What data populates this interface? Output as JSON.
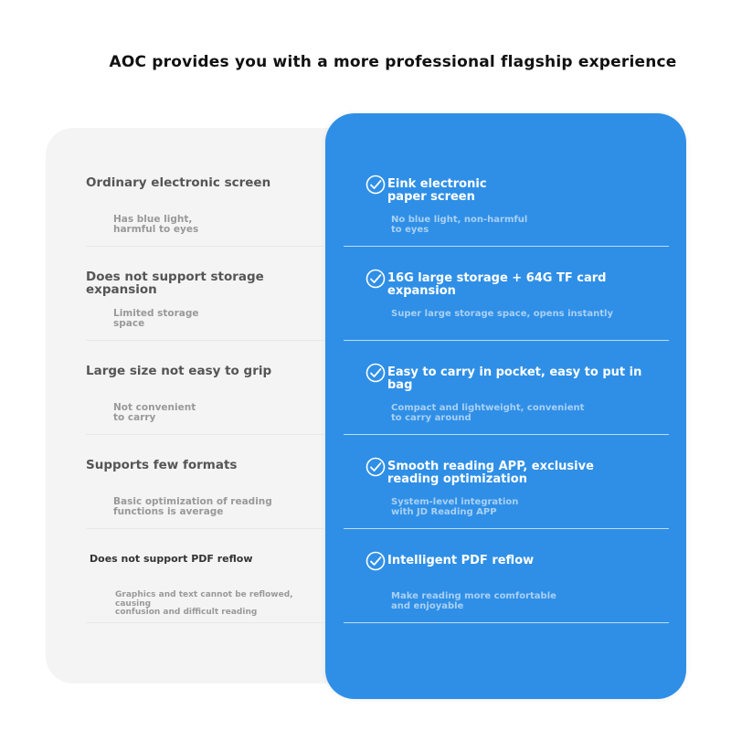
{
  "title": "AOC provides you with a more professional flagship experience",
  "colors": {
    "accent_blue": "#2f8fe6",
    "left_card": "#f4f4f4"
  },
  "ordinary": [
    {
      "title": "Ordinary electronic screen",
      "subtitle": "Has blue light,\n harmful to eyes"
    },
    {
      "title": "Does not support storage\n expansion",
      "subtitle": "Limited storage\n space"
    },
    {
      "title": "Large size not easy to grip",
      "subtitle": "Not convenient\n to carry"
    },
    {
      "title": "Supports few formats",
      "subtitle": "Basic optimization of reading\n functions is average"
    },
    {
      "title": "Does not support PDF reflow",
      "subtitle": "Graphics and text cannot be reflowed, causing\n confusion and difficult reading"
    }
  ],
  "aoc": [
    {
      "icon": "check-circle-icon",
      "title": "Eink electronic\n paper screen",
      "subtitle": "No blue light, non-harmful\n to eyes"
    },
    {
      "icon": "check-circle-icon",
      "title": "16G large storage + 64G TF card expansion",
      "subtitle": "Super large storage space, opens instantly"
    },
    {
      "icon": "check-circle-icon",
      "title": "Easy to carry in pocket, easy to put in bag",
      "subtitle": "Compact and lightweight, convenient\n to carry around"
    },
    {
      "icon": "check-circle-icon",
      "title": "Smooth reading APP, exclusive\n reading optimization",
      "subtitle": "System-level integration\n with JD Reading APP"
    },
    {
      "icon": "check-circle-icon",
      "title": "Intelligent PDF reflow",
      "subtitle": "Make reading more comfortable\n and enjoyable"
    }
  ]
}
